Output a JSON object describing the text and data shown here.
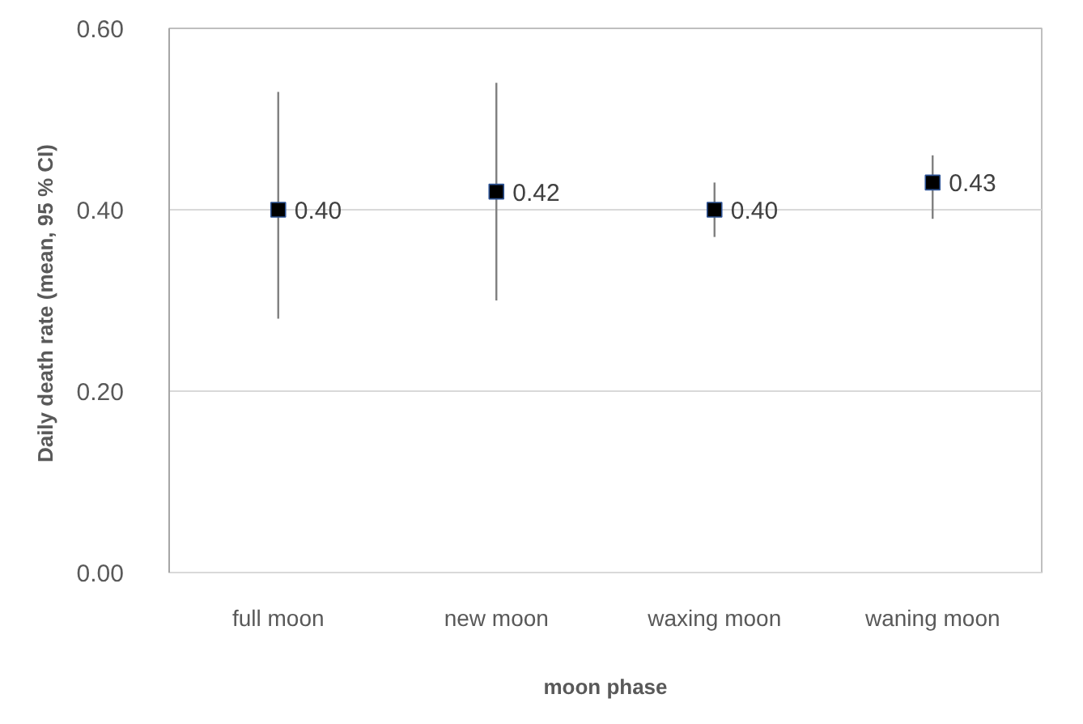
{
  "chart_data": {
    "type": "scatter",
    "xlabel": "moon phase",
    "ylabel": "Daily death rate  (mean, 95 % CI)",
    "categories": [
      "full moon",
      "new moon",
      "waxing moon",
      "waning moon"
    ],
    "values": [
      0.4,
      0.42,
      0.4,
      0.43
    ],
    "color": "#000000",
    "errors": [
      [
        0.28,
        0.53
      ],
      [
        0.3,
        0.54
      ],
      [
        0.37,
        0.43
      ],
      [
        0.39,
        0.46
      ]
    ],
    "value_labels": [
      "0.40",
      "0.42",
      "0.40",
      "0.43"
    ],
    "ylim": [
      0,
      0.6
    ],
    "yticks": [
      {
        "value": 0,
        "label": "0.00"
      },
      {
        "value": 0.2,
        "label": "0.20"
      },
      {
        "value": 0.4,
        "label": "0.40"
      },
      {
        "value": 0.6,
        "label": "0.60"
      }
    ],
    "grid": "y",
    "marker": "square"
  }
}
